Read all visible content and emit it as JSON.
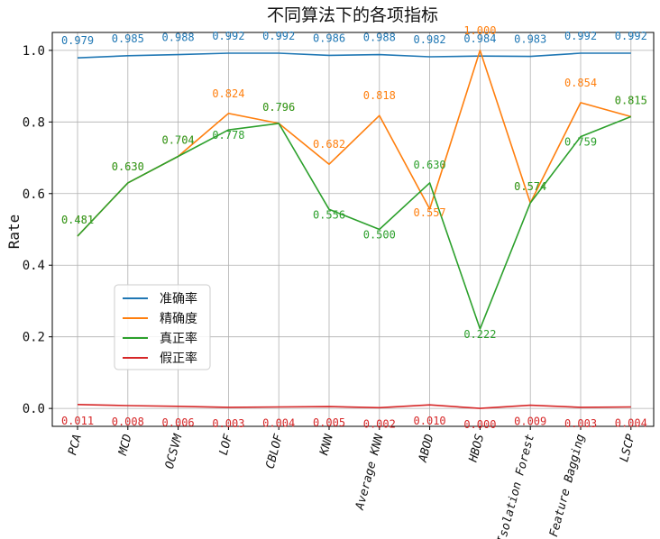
{
  "chart_data": {
    "type": "line",
    "title": "不同算法下的各项指标",
    "xlabel": "",
    "ylabel": "Rate",
    "ylim": [
      -0.05,
      1.05
    ],
    "yticks": [
      0.0,
      0.2,
      0.4,
      0.6,
      0.8,
      1.0
    ],
    "ytick_labels": [
      "0.0",
      "0.2",
      "0.4",
      "0.6",
      "0.8",
      "1.0"
    ],
    "grid": true,
    "legend_position": "center-left",
    "categories": [
      "PCA",
      "MCD",
      "OCSVM",
      "LOF",
      "CBLOF",
      "KNN",
      "Average KNN",
      "ABOD",
      "HBOS",
      "Isolation Forest",
      "Feature Bagging",
      "LSCP"
    ],
    "series": [
      {
        "name": "准确率",
        "color": "#1f77b4",
        "values": [
          0.979,
          0.985,
          0.988,
          0.992,
          0.992,
          0.986,
          0.988,
          0.982,
          0.984,
          0.983,
          0.992,
          0.992
        ],
        "labels": [
          "0.979",
          "0.985",
          "0.988",
          "0.992",
          "0.992",
          "0.986",
          "0.988",
          "0.982",
          "0.984",
          "0.983",
          "0.992",
          "0.992"
        ]
      },
      {
        "name": "精确度",
        "color": "#ff7f0e",
        "values": [
          0.481,
          0.63,
          0.704,
          0.824,
          0.796,
          0.682,
          0.818,
          0.557,
          1.0,
          0.574,
          0.854,
          0.815
        ],
        "labels": [
          "0.481",
          "0.630",
          "0.704",
          "0.824",
          "0.796",
          "0.682",
          "0.818",
          "0.557",
          "1.000",
          "0.574",
          "0.854",
          "0.815"
        ]
      },
      {
        "name": "真正率",
        "color": "#2ca02c",
        "values": [
          0.481,
          0.63,
          0.704,
          0.778,
          0.796,
          0.556,
          0.5,
          0.63,
          0.222,
          0.574,
          0.759,
          0.815
        ],
        "labels": [
          "0.481",
          "0.630",
          "0.704",
          "0.778",
          "0.796",
          "0.556",
          "0.500",
          "0.630",
          "0.222",
          "0.574",
          "0.759",
          "0.815"
        ]
      },
      {
        "name": "假正率",
        "color": "#d62728",
        "values": [
          0.011,
          0.008,
          0.006,
          0.003,
          0.004,
          0.005,
          0.002,
          0.01,
          0.0,
          0.009,
          0.003,
          0.004
        ],
        "labels": [
          "0.011",
          "0.008",
          "0.006",
          "0.003",
          "0.004",
          "0.005",
          "0.002",
          "0.010",
          "0.000",
          "0.009",
          "0.003",
          "0.004"
        ]
      }
    ]
  }
}
